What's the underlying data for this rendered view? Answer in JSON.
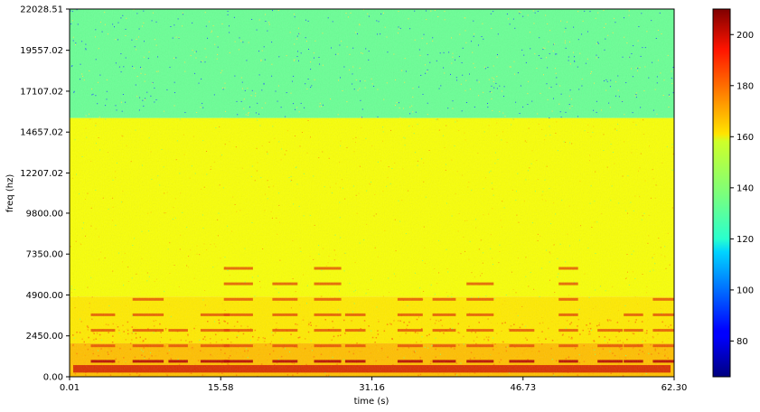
{
  "chart_data": {
    "type": "heatmap",
    "title": "",
    "xlabel": "time (s)",
    "ylabel": "freq (hz)",
    "xlim": [
      0.01,
      62.3
    ],
    "ylim": [
      0.0,
      22028.51
    ],
    "x_ticks": [
      "0.01",
      "15.58",
      "31.16",
      "46.73",
      "62.30"
    ],
    "x_tick_values": [
      0.01,
      15.58,
      31.16,
      46.73,
      62.3
    ],
    "y_ticks": [
      "0.00",
      "2450.00",
      "4900.00",
      "7350.00",
      "9800.00",
      "12207.02",
      "14657.02",
      "17107.02",
      "19557.02",
      "22028.51"
    ],
    "y_tick_values": [
      0.0,
      2450.0,
      4900.0,
      7350.0,
      9800.0,
      12207.02,
      14657.02,
      17107.02,
      19557.02,
      22028.51
    ],
    "colorbar": {
      "range": [
        66,
        210
      ],
      "ticks": [
        "80",
        "100",
        "120",
        "140",
        "160",
        "180",
        "200"
      ],
      "tick_values": [
        80,
        100,
        120,
        140,
        160,
        180,
        200
      ],
      "colormap": "jet"
    },
    "levels": {
      "high_band": 135,
      "mid_band": 155,
      "low_band": 162,
      "cutoff_freq": 15500
    }
  }
}
